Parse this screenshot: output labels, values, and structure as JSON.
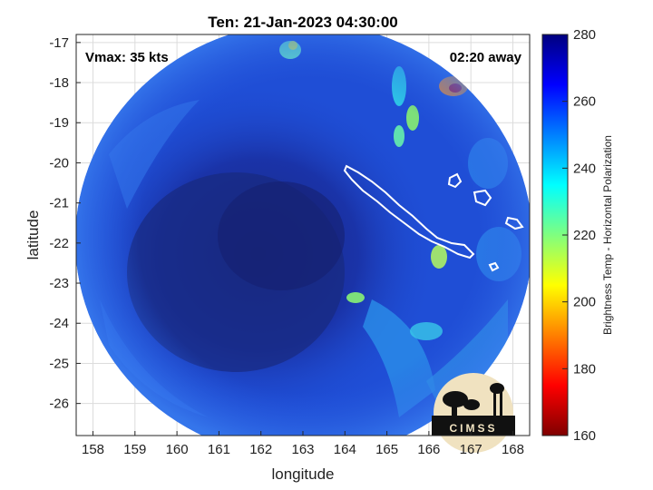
{
  "title": "Ten: 21-Jan-2023 04:30:00",
  "vmax_label": "Vmax: 35 kts",
  "time_away_label": "02:20 away",
  "x_axis": {
    "label": "longitude",
    "range": [
      157.6,
      168.4
    ],
    "ticks": [
      "158",
      "159",
      "160",
      "161",
      "162",
      "163",
      "164",
      "165",
      "166",
      "167",
      "168"
    ]
  },
  "y_axis": {
    "label": "latitude",
    "range": [
      -26.8,
      -16.8
    ],
    "ticks": [
      "-17",
      "-18",
      "-19",
      "-20",
      "-21",
      "-22",
      "-23",
      "-24",
      "-25",
      "-26"
    ]
  },
  "colorbar": {
    "label": "Brightness Temp - Horizontal Polarization",
    "range": [
      160,
      280
    ],
    "ticks": [
      "280",
      "260",
      "240",
      "220",
      "200",
      "180",
      "160"
    ],
    "colormap": "jet"
  },
  "logo": {
    "text": "CIMSS"
  },
  "colors": {
    "background": "#1f4ed6",
    "dark_core": "#17267f",
    "land_outline": "#ffffff"
  }
}
